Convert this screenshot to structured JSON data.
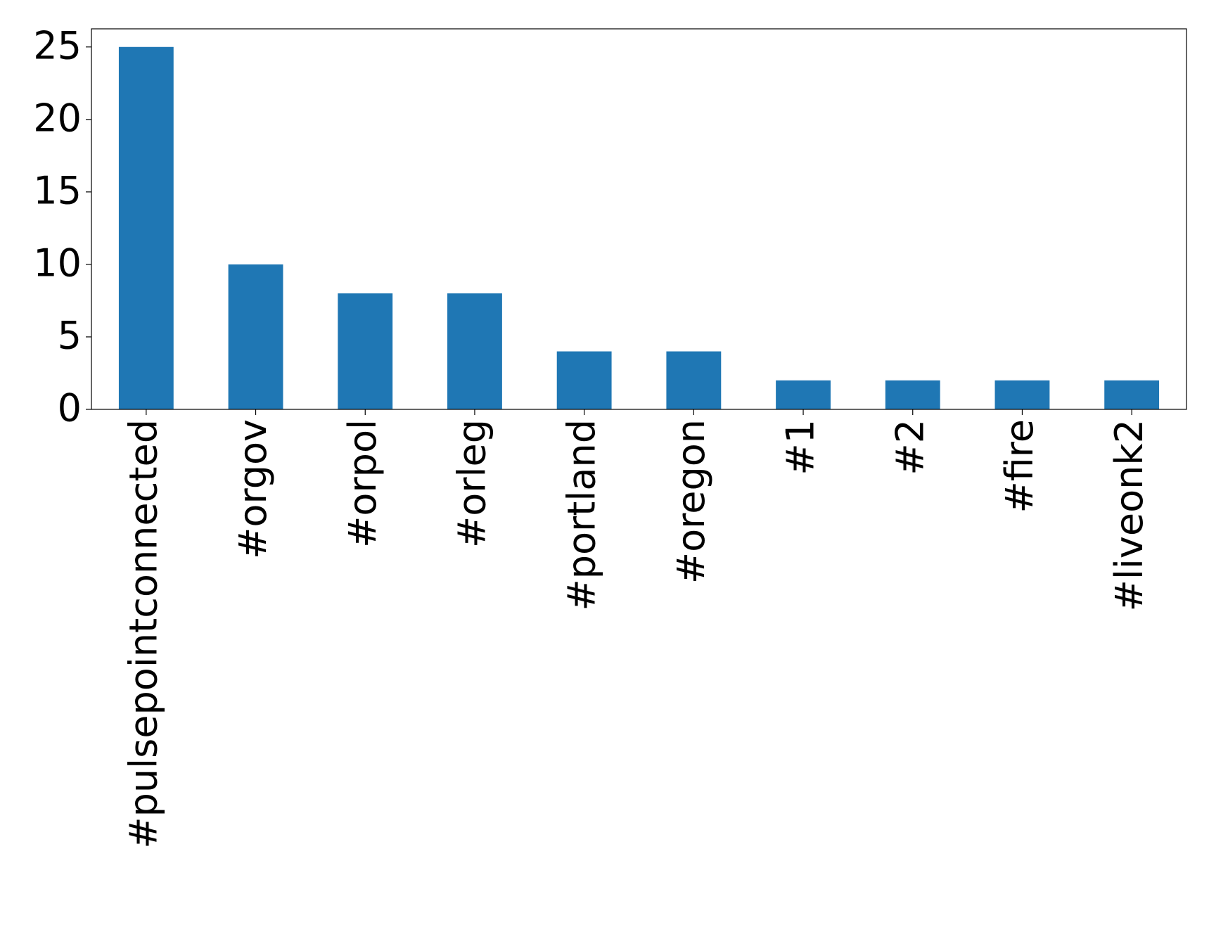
{
  "chart_data": {
    "type": "bar",
    "categories": [
      "#pulsepointconnected",
      "#orgov",
      "#orpol",
      "#orleg",
      "#portland",
      "#oregon",
      "#1",
      "#2",
      "#fire",
      "#liveonk2"
    ],
    "values": [
      25,
      10,
      8,
      8,
      4,
      4,
      2,
      2,
      2,
      2
    ],
    "color": "#1f77b4",
    "ylim": [
      0,
      26.25
    ],
    "yticks": [
      0,
      5,
      10,
      15,
      20,
      25
    ],
    "grid": false
  }
}
